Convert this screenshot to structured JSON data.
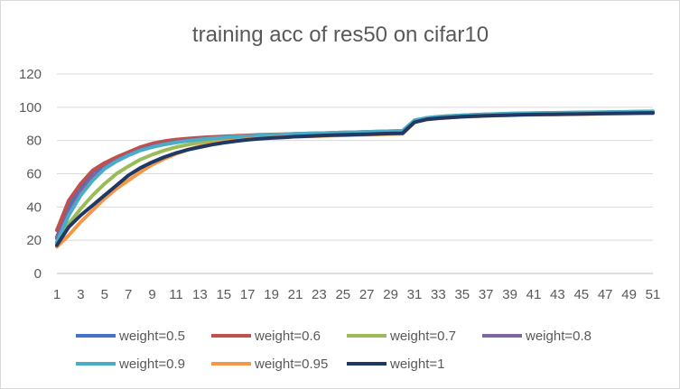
{
  "chart_data": {
    "type": "line",
    "title": "training acc of res50 on cifar10",
    "xlabel": "",
    "ylabel": "",
    "ylim": [
      0,
      120
    ],
    "yticks": [
      0,
      20,
      40,
      60,
      80,
      100,
      120
    ],
    "xticks": [
      1,
      3,
      5,
      7,
      9,
      11,
      13,
      15,
      17,
      19,
      21,
      23,
      25,
      27,
      29,
      31,
      33,
      35,
      37,
      39,
      41,
      43,
      45,
      47,
      49,
      51
    ],
    "x": [
      1,
      2,
      3,
      4,
      5,
      6,
      7,
      8,
      9,
      10,
      11,
      12,
      13,
      14,
      15,
      16,
      17,
      18,
      19,
      20,
      21,
      22,
      23,
      24,
      25,
      26,
      27,
      28,
      29,
      30,
      31,
      32,
      33,
      34,
      35,
      36,
      37,
      38,
      39,
      40,
      41,
      42,
      43,
      44,
      45,
      46,
      47,
      48,
      49,
      50,
      51
    ],
    "grid": true,
    "legend_position": "bottom",
    "series": [
      {
        "name": "weight=0.5",
        "color": "#4472c4",
        "values": [
          22,
          40,
          52,
          61,
          66,
          69.5,
          72.5,
          75,
          76.8,
          78.2,
          79.3,
          80.2,
          80.9,
          81.5,
          82,
          82.4,
          82.8,
          83.1,
          83.4,
          83.6,
          83.9,
          84.1,
          84.3,
          84.5,
          84.7,
          84.9,
          85.1,
          85.3,
          85.5,
          85.7,
          92,
          93.5,
          94.2,
          94.7,
          95.1,
          95.4,
          95.7,
          95.9,
          96.1,
          96.3,
          96.4,
          96.5,
          96.6,
          96.7,
          96.8,
          96.9,
          97,
          97.1,
          97.2,
          97.3,
          97.4
        ]
      },
      {
        "name": "weight=0.6",
        "color": "#c0504d",
        "values": [
          26,
          44,
          54,
          62,
          66.5,
          70,
          73,
          76,
          78.2,
          79.6,
          80.6,
          81.2,
          81.7,
          82.1,
          82.5,
          82.8,
          83.1,
          83.4,
          83.6,
          83.8,
          84,
          84.2,
          84.4,
          84.6,
          84.8,
          85,
          85.2,
          85.4,
          85.6,
          85.8,
          92,
          93.4,
          94.1,
          94.6,
          95,
          95.3,
          95.6,
          95.8,
          96,
          96.2,
          96.3,
          96.4,
          96.5,
          96.6,
          96.7,
          96.8,
          96.9,
          97,
          97.1,
          97.2,
          97.3
        ]
      },
      {
        "name": "weight=0.7",
        "color": "#9bbb59",
        "values": [
          18,
          30,
          39,
          47,
          54,
          60,
          64.5,
          68.5,
          71.5,
          74,
          76,
          77.5,
          78.8,
          79.8,
          80.6,
          81.3,
          81.8,
          82.2,
          82.6,
          82.9,
          83.2,
          83.5,
          83.7,
          83.9,
          84.1,
          84.3,
          84.5,
          84.7,
          84.9,
          85.1,
          91.8,
          93.3,
          94,
          94.5,
          94.9,
          95.2,
          95.5,
          95.7,
          95.9,
          96.1,
          96.2,
          96.3,
          96.4,
          96.5,
          96.6,
          96.7,
          96.8,
          96.9,
          97,
          97.1,
          97.2
        ]
      },
      {
        "name": "weight=0.8",
        "color": "#8064a2",
        "values": [
          21,
          37,
          49,
          58,
          64,
          68,
          71.5,
          74.5,
          76.5,
          78,
          79.2,
          80.1,
          80.8,
          81.4,
          81.9,
          82.3,
          82.7,
          83,
          83.3,
          83.5,
          83.8,
          84,
          84.2,
          84.4,
          84.6,
          84.8,
          85,
          85.2,
          85.4,
          85.6,
          92,
          93.4,
          94.1,
          94.6,
          95,
          95.3,
          95.6,
          95.8,
          96,
          96.2,
          96.3,
          96.4,
          96.5,
          96.6,
          96.7,
          96.8,
          96.9,
          97,
          97.1,
          97.2,
          97.3
        ]
      },
      {
        "name": "weight=0.9",
        "color": "#4bacc6",
        "values": [
          19,
          35,
          47,
          56,
          63,
          67.5,
          71,
          74,
          76,
          77.6,
          78.8,
          79.8,
          80.6,
          81.3,
          81.8,
          82.3,
          82.7,
          83.1,
          83.4,
          83.7,
          84,
          84.2,
          84.4,
          84.6,
          84.8,
          85,
          85.2,
          85.4,
          85.6,
          85.8,
          92.2,
          93.6,
          94.3,
          94.8,
          95.2,
          95.5,
          95.8,
          96,
          96.2,
          96.4,
          96.5,
          96.6,
          96.7,
          96.8,
          96.9,
          97,
          97.1,
          97.2,
          97.3,
          97.4,
          97.5
        ]
      },
      {
        "name": "weight=0.95",
        "color": "#f79646",
        "values": [
          16,
          23,
          31,
          38,
          45,
          51,
          56,
          61,
          65.5,
          69,
          72,
          74.5,
          76.5,
          78,
          79.2,
          80.1,
          80.8,
          81.3,
          81.7,
          82,
          82.3,
          82.5,
          82.7,
          82.9,
          83.1,
          83.3,
          83.5,
          83.7,
          83.9,
          84,
          91,
          92.6,
          93.3,
          93.8,
          94.2,
          94.5,
          94.8,
          95,
          95.2,
          95.4,
          95.5,
          95.6,
          95.7,
          95.8,
          95.9,
          96,
          96.1,
          96.2,
          96.3,
          96.4,
          96.4
        ]
      },
      {
        "name": "weight=1",
        "color": "#1f3864",
        "values": [
          17,
          28,
          35,
          41,
          47,
          53,
          59,
          63.5,
          67,
          70,
          72.5,
          74.5,
          76,
          77.5,
          78.7,
          79.6,
          80.4,
          81,
          81.5,
          81.9,
          82.3,
          82.6,
          82.9,
          83.2,
          83.4,
          83.6,
          83.8,
          84,
          84.2,
          84.4,
          91,
          92.7,
          93.4,
          93.9,
          94.3,
          94.6,
          94.9,
          95.1,
          95.3,
          95.5,
          95.6,
          95.7,
          95.8,
          95.9,
          96,
          96.1,
          96.2,
          96.3,
          96.4,
          96.5,
          96.6
        ]
      }
    ]
  }
}
